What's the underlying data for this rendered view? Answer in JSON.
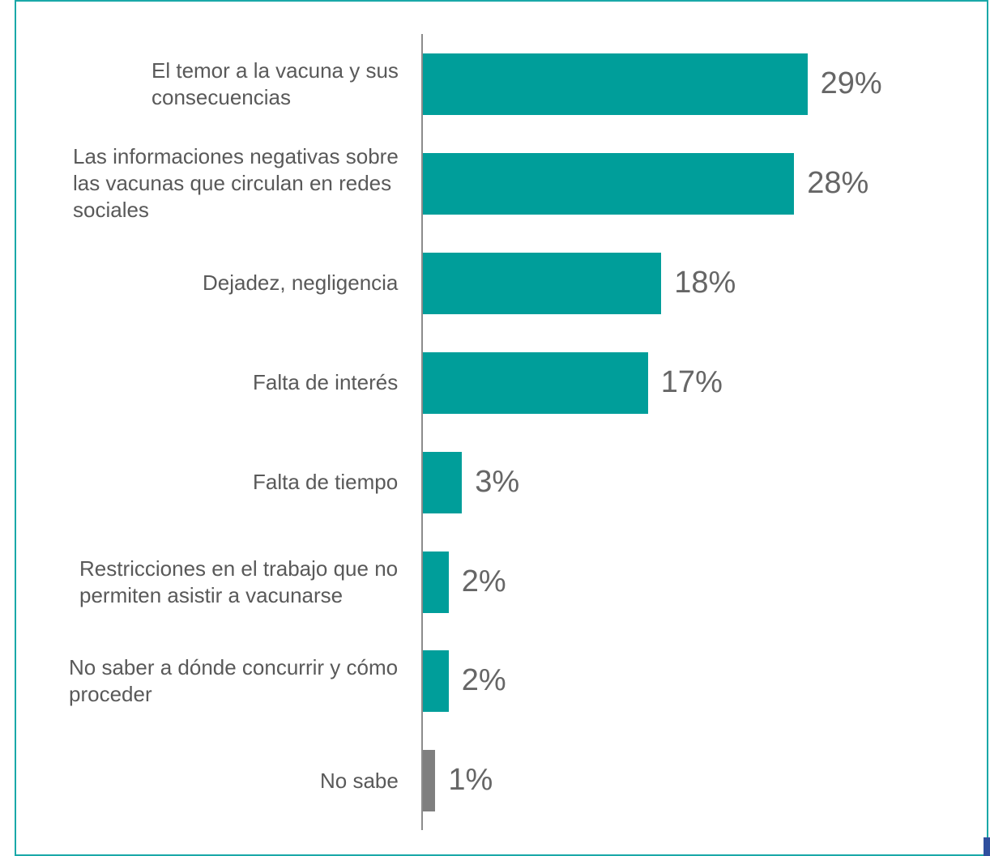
{
  "chart_data": {
    "type": "bar",
    "orientation": "horizontal",
    "categories": [
      "El temor a la vacuna y sus consecuencias",
      "Las informaciones negativas sobre las vacunas que circulan en redes sociales",
      "Dejadez, negligencia",
      "Falta de interés",
      "Falta de tiempo",
      "Restricciones en el trabajo que no permiten asistir a vacunarse",
      "No saber a dónde concurrir y cómo proceder",
      "No sabe"
    ],
    "values": [
      29,
      28,
      18,
      17,
      3,
      2,
      2,
      1
    ],
    "value_labels": [
      "29%",
      "28%",
      "18%",
      "17%",
      "3%",
      "2%",
      "2%",
      "1%"
    ],
    "colors": [
      "#009e9a",
      "#009e9a",
      "#009e9a",
      "#009e9a",
      "#009e9a",
      "#009e9a",
      "#009e9a",
      "#7f7f7f"
    ]
  }
}
